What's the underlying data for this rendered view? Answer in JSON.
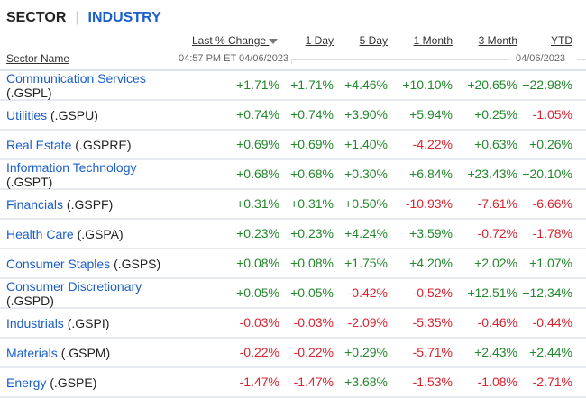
{
  "tabs": {
    "sector": "SECTOR",
    "separator": "|",
    "industry": "INDUSTRY"
  },
  "headers": {
    "name": "Sector Name",
    "last": "Last % Change",
    "d1": "1 Day",
    "d5": "5 Day",
    "m1": "1 Month",
    "m3": "3 Month",
    "ytd": "YTD",
    "timestamp": "04:57 PM ET 04/06/2023",
    "date": "04/06/2023",
    "sort_icon": "triangle-down"
  },
  "colors": {
    "positive": "#23872c",
    "negative": "#d9232e",
    "link": "#1a5fc9"
  },
  "rows": [
    {
      "name": "Communication Services",
      "ticker": "(.GSPL)",
      "inline": false,
      "vals": [
        "+1.71%",
        "+1.71%",
        "+4.46%",
        "+10.10%",
        "+20.65%",
        "+22.98%"
      ]
    },
    {
      "name": "Utilities",
      "ticker": "(.GSPU)",
      "inline": true,
      "vals": [
        "+0.74%",
        "+0.74%",
        "+3.90%",
        "+5.94%",
        "+0.25%",
        "-1.05%"
      ]
    },
    {
      "name": "Real Estate",
      "ticker": "(.GSPRE)",
      "inline": true,
      "vals": [
        "+0.69%",
        "+0.69%",
        "+1.40%",
        "-4.22%",
        "+0.63%",
        "+0.26%"
      ]
    },
    {
      "name": "Information Technology",
      "ticker": "(.GSPT)",
      "inline": false,
      "vals": [
        "+0.68%",
        "+0.68%",
        "+0.30%",
        "+6.84%",
        "+23.43%",
        "+20.10%"
      ]
    },
    {
      "name": "Financials",
      "ticker": "(.GSPF)",
      "inline": true,
      "vals": [
        "+0.31%",
        "+0.31%",
        "+0.50%",
        "-10.93%",
        "-7.61%",
        "-6.66%"
      ]
    },
    {
      "name": "Health Care",
      "ticker": "(.GSPA)",
      "inline": true,
      "vals": [
        "+0.23%",
        "+0.23%",
        "+4.24%",
        "+3.59%",
        "-0.72%",
        "-1.78%"
      ]
    },
    {
      "name": "Consumer Staples",
      "ticker": "(.GSPS)",
      "inline": true,
      "vals": [
        "+0.08%",
        "+0.08%",
        "+1.75%",
        "+4.20%",
        "+2.02%",
        "+1.07%"
      ]
    },
    {
      "name": "Consumer Discretionary",
      "ticker": "(.GSPD)",
      "inline": false,
      "vals": [
        "+0.05%",
        "+0.05%",
        "-0.42%",
        "-0.52%",
        "+12.51%",
        "+12.34%"
      ]
    },
    {
      "name": "Industrials",
      "ticker": "(.GSPI)",
      "inline": true,
      "vals": [
        "-0.03%",
        "-0.03%",
        "-2.09%",
        "-5.35%",
        "-0.46%",
        "-0.44%"
      ]
    },
    {
      "name": "Materials",
      "ticker": "(.GSPM)",
      "inline": true,
      "vals": [
        "-0.22%",
        "-0.22%",
        "+0.29%",
        "-5.71%",
        "+2.43%",
        "+2.44%"
      ]
    },
    {
      "name": "Energy",
      "ticker": "(.GSPE)",
      "inline": true,
      "vals": [
        "-1.47%",
        "-1.47%",
        "+3.68%",
        "-1.53%",
        "-1.08%",
        "-2.71%"
      ]
    }
  ]
}
